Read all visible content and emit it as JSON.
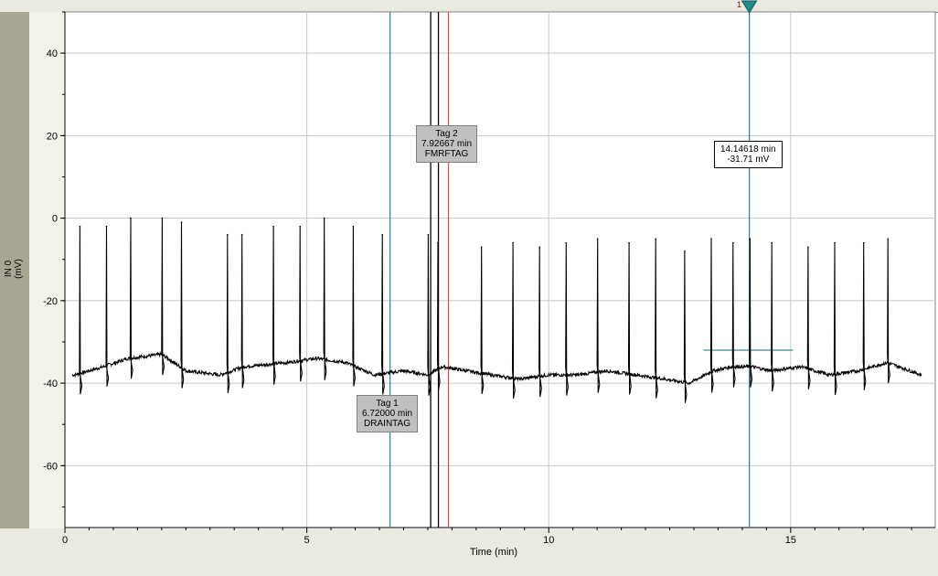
{
  "chart_data": {
    "type": "line",
    "xlabel": "Time (min)",
    "ylabel_line1": "IN 0",
    "ylabel_line2": "(mV)",
    "xlim": [
      0,
      17.8
    ],
    "ylim": [
      -75,
      50
    ],
    "xticks": [
      0,
      5,
      10,
      15
    ],
    "yticks": [
      40,
      20,
      0,
      -20,
      -40,
      -60
    ],
    "grid": true,
    "series": [
      {
        "color": "#000000",
        "baseline": [
          [
            0.2,
            -38
          ],
          [
            0.8,
            -36
          ],
          [
            1.3,
            -34
          ],
          [
            2.0,
            -33
          ],
          [
            2.5,
            -37
          ],
          [
            3.2,
            -38
          ],
          [
            3.7,
            -36
          ],
          [
            4.6,
            -35
          ],
          [
            5.2,
            -34
          ],
          [
            5.8,
            -35
          ],
          [
            6.4,
            -38
          ],
          [
            7.0,
            -37
          ],
          [
            7.5,
            -38
          ],
          [
            7.8,
            -36
          ],
          [
            8.3,
            -37
          ],
          [
            8.8,
            -38
          ],
          [
            9.4,
            -39
          ],
          [
            10.0,
            -38
          ],
          [
            10.6,
            -38
          ],
          [
            11.2,
            -37
          ],
          [
            11.8,
            -38
          ],
          [
            12.4,
            -39
          ],
          [
            12.9,
            -40
          ],
          [
            13.4,
            -37
          ],
          [
            13.8,
            -36
          ],
          [
            14.2,
            -36
          ],
          [
            14.6,
            -37
          ],
          [
            15.2,
            -36
          ],
          [
            15.8,
            -38
          ],
          [
            16.4,
            -37
          ],
          [
            17.0,
            -35
          ],
          [
            17.7,
            -38
          ]
        ],
        "spikes": [
          [
            0.3,
            -2
          ],
          [
            0.85,
            -2
          ],
          [
            1.35,
            0
          ],
          [
            2.0,
            0
          ],
          [
            2.4,
            -1
          ],
          [
            3.35,
            -4
          ],
          [
            3.65,
            -4
          ],
          [
            4.3,
            -2
          ],
          [
            4.85,
            -2
          ],
          [
            5.35,
            0
          ],
          [
            5.95,
            -2
          ],
          [
            6.55,
            -4
          ],
          [
            7.5,
            -4
          ],
          [
            7.7,
            -6
          ],
          [
            8.6,
            -7
          ],
          [
            9.25,
            -6
          ],
          [
            9.8,
            -7
          ],
          [
            10.35,
            -6
          ],
          [
            11.0,
            -5
          ],
          [
            11.65,
            -6
          ],
          [
            12.2,
            -5
          ],
          [
            12.8,
            -8
          ],
          [
            13.35,
            -5
          ],
          [
            13.8,
            -6
          ],
          [
            14.15,
            -5
          ],
          [
            14.6,
            -6
          ],
          [
            15.35,
            -7
          ],
          [
            15.9,
            -6
          ],
          [
            16.5,
            -6
          ],
          [
            17.0,
            -5
          ]
        ]
      }
    ],
    "markers": [
      {
        "time": 6.72,
        "color": "#2a8fa0"
      },
      {
        "time": 7.56,
        "color": "#000000"
      },
      {
        "time": 7.72,
        "color": "#000000"
      },
      {
        "time": 7.92667,
        "color": "#e05050"
      },
      {
        "time": 14.14618,
        "color": "#2a8fa0"
      }
    ],
    "annotations": {
      "tag1": {
        "line1": "Tag 1",
        "line2": "6.72000 min",
        "line3": "DRAINTAG"
      },
      "tag2": {
        "line1": "Tag 2",
        "line2": "7.92667 min",
        "line3": "FMRFTAG"
      },
      "cursor": {
        "number": "1",
        "time": "14.14618 min",
        "value": "-31.71 mV"
      }
    },
    "hline": {
      "y": -32,
      "x0": 13.2,
      "x1": 15.05,
      "color": "#2a8fa0"
    }
  }
}
